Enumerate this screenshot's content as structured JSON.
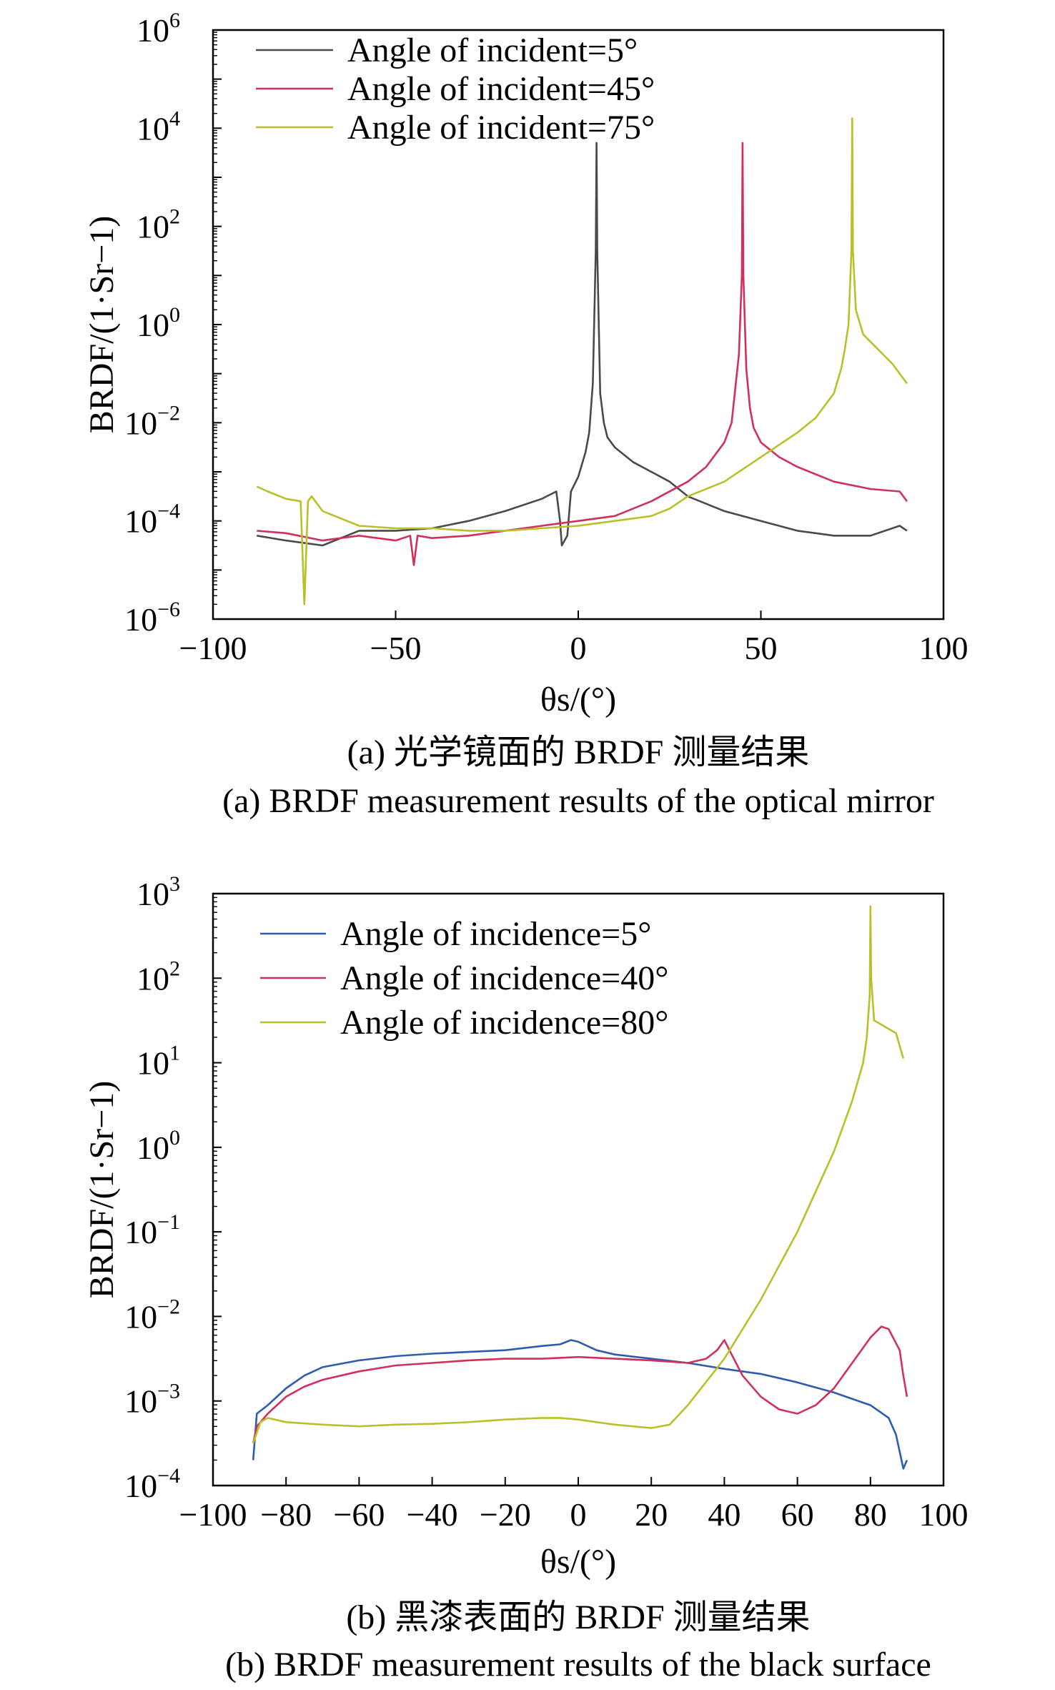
{
  "colors": {
    "black": "#4a4a4a",
    "red": "#d0305a",
    "yellow": "#b9c02a",
    "blue": "#2f5cb0",
    "orange": "#f08a2a"
  },
  "chart_data": [
    {
      "type": "line",
      "xlabel": "θs/(°)",
      "ylabel": "BRDF/(1·Sr−1)",
      "xlim": [
        -100,
        100
      ],
      "ylim_log10": [
        -6,
        6
      ],
      "y_scale": "log",
      "x_ticks": [
        -100,
        -50,
        0,
        50,
        100
      ],
      "x_tick_labels": [
        "−100",
        "−50",
        "0",
        "50",
        "100"
      ],
      "y_tick_exps": [
        6,
        4,
        2,
        0,
        -2,
        -4,
        -6
      ],
      "y_tick_exp_labels": [
        "6",
        "4",
        "2",
        "0",
        "−2",
        "−4",
        "−6"
      ],
      "legend_position": "top-left",
      "caption_cn": "(a) 光学镜面的 BRDF 测量结果",
      "caption_en": "(a) BRDF measurement results of the optical mirror",
      "series": [
        {
          "name": "Angle of incident=5°",
          "color": "#4a4a4a",
          "x": [
            -88,
            -80,
            -70,
            -60,
            -50,
            -40,
            -30,
            -20,
            -10,
            -6,
            -5,
            -4.5,
            -3,
            -2,
            0,
            2,
            3,
            4,
            4.8,
            5,
            5.2,
            6,
            7,
            8,
            10,
            15,
            20,
            25,
            30,
            40,
            50,
            60,
            70,
            80,
            88,
            90
          ],
          "y": [
            -4.3,
            -4.4,
            -4.5,
            -4.2,
            -4.2,
            -4.15,
            -4.0,
            -3.8,
            -3.55,
            -3.4,
            -4.0,
            -4.5,
            -4.3,
            -3.4,
            -3.1,
            -2.6,
            -2.2,
            -1.2,
            1.5,
            3.7,
            1.5,
            -1.4,
            -2.0,
            -2.3,
            -2.5,
            -2.8,
            -3.0,
            -3.2,
            -3.5,
            -3.8,
            -4.0,
            -4.2,
            -4.3,
            -4.3,
            -4.1,
            -4.2
          ]
        },
        {
          "name": "Angle of incident=45°",
          "color": "#d0305a",
          "x": [
            -88,
            -80,
            -70,
            -60,
            -50,
            -46,
            -45,
            -44,
            -40,
            -30,
            -20,
            -10,
            0,
            10,
            20,
            30,
            35,
            40,
            42,
            43,
            44,
            44.8,
            45,
            45.2,
            46,
            47,
            48,
            50,
            55,
            60,
            70,
            80,
            88,
            90
          ],
          "y": [
            -4.2,
            -4.25,
            -4.4,
            -4.3,
            -4.4,
            -4.3,
            -4.9,
            -4.3,
            -4.35,
            -4.3,
            -4.2,
            -4.1,
            -4.0,
            -3.9,
            -3.6,
            -3.2,
            -2.9,
            -2.4,
            -2.0,
            -1.3,
            -0.6,
            1.0,
            3.7,
            1.0,
            -0.9,
            -1.7,
            -2.1,
            -2.4,
            -2.7,
            -2.9,
            -3.2,
            -3.35,
            -3.4,
            -3.6
          ]
        },
        {
          "name": "Angle of incident=75°",
          "color": "#b9c02a",
          "x": [
            -88,
            -85,
            -80,
            -76,
            -75,
            -74,
            -73,
            -70,
            -60,
            -50,
            -40,
            -30,
            -20,
            -10,
            0,
            10,
            20,
            25,
            30,
            40,
            50,
            60,
            65,
            70,
            72,
            73,
            74,
            74.8,
            75,
            75.2,
            76,
            78,
            82,
            86,
            90
          ],
          "y": [
            -3.3,
            -3.4,
            -3.55,
            -3.6,
            -5.7,
            -3.6,
            -3.5,
            -3.8,
            -4.1,
            -4.15,
            -4.15,
            -4.2,
            -4.2,
            -4.15,
            -4.1,
            -4.0,
            -3.9,
            -3.75,
            -3.5,
            -3.2,
            -2.7,
            -2.2,
            -1.9,
            -1.4,
            -0.9,
            -0.5,
            0.0,
            1.5,
            4.2,
            1.5,
            0.3,
            -0.2,
            -0.5,
            -0.8,
            -1.2
          ]
        }
      ]
    },
    {
      "type": "line",
      "xlabel": "θs/(°)",
      "ylabel": "BRDF/(1·Sr−1)",
      "xlim": [
        -100,
        100
      ],
      "ylim_log10": [
        -4,
        3
      ],
      "y_scale": "log",
      "x_ticks": [
        -100,
        -80,
        -60,
        -40,
        -20,
        0,
        20,
        40,
        60,
        80,
        100
      ],
      "x_tick_labels": [
        "−100",
        "−80",
        "−60",
        "−40",
        "−20",
        "0",
        "20",
        "40",
        "60",
        "80",
        "100"
      ],
      "y_tick_exps": [
        3,
        2,
        1,
        0,
        -1,
        -2,
        -3,
        -4
      ],
      "y_tick_exp_labels": [
        "3",
        "2",
        "1",
        "0",
        "−1",
        "−2",
        "−3",
        "−4"
      ],
      "legend_position": "top-left",
      "caption_cn": "(b) 黑漆表面的 BRDF 测量结果",
      "caption_en": "(b) BRDF measurement results of the black surface",
      "series": [
        {
          "name": "Angle of incidence=5°",
          "color": "#2f5cb0",
          "x": [
            -89,
            -88,
            -85,
            -80,
            -75,
            -70,
            -60,
            -50,
            -40,
            -30,
            -20,
            -10,
            -5,
            -2,
            0,
            5,
            10,
            20,
            30,
            40,
            50,
            60,
            70,
            80,
            85,
            87,
            88,
            89,
            90
          ],
          "y": [
            -3.7,
            -3.15,
            -3.05,
            -2.85,
            -2.7,
            -2.6,
            -2.52,
            -2.47,
            -2.44,
            -2.42,
            -2.4,
            -2.35,
            -2.33,
            -2.28,
            -2.3,
            -2.4,
            -2.45,
            -2.5,
            -2.55,
            -2.62,
            -2.68,
            -2.78,
            -2.9,
            -3.05,
            -3.2,
            -3.4,
            -3.6,
            -3.8,
            -3.7
          ]
        },
        {
          "name": "Angle of incidence=40°",
          "color": "#d0305a",
          "x": [
            -89,
            -88,
            -85,
            -80,
            -75,
            -70,
            -60,
            -50,
            -40,
            -30,
            -20,
            -10,
            0,
            10,
            20,
            30,
            35,
            38,
            40,
            42,
            45,
            50,
            55,
            60,
            65,
            70,
            75,
            80,
            83,
            85,
            88,
            89,
            90
          ],
          "y": [
            -3.5,
            -3.3,
            -3.15,
            -2.95,
            -2.83,
            -2.75,
            -2.65,
            -2.58,
            -2.55,
            -2.52,
            -2.5,
            -2.5,
            -2.48,
            -2.5,
            -2.52,
            -2.55,
            -2.5,
            -2.4,
            -2.28,
            -2.45,
            -2.7,
            -2.95,
            -3.1,
            -3.15,
            -3.05,
            -2.85,
            -2.55,
            -2.25,
            -2.12,
            -2.15,
            -2.4,
            -2.7,
            -2.95
          ]
        },
        {
          "name": "Angle of incidence=80°",
          "color": "#b9c02a",
          "x": [
            -89,
            -87,
            -85,
            -80,
            -70,
            -60,
            -50,
            -40,
            -30,
            -20,
            -10,
            -5,
            0,
            5,
            10,
            20,
            25,
            30,
            40,
            50,
            60,
            70,
            75,
            78,
            79,
            79.8,
            80,
            80.2,
            81,
            83,
            85,
            87,
            89
          ],
          "y": [
            -3.5,
            -3.25,
            -3.2,
            -3.25,
            -3.28,
            -3.3,
            -3.28,
            -3.27,
            -3.25,
            -3.22,
            -3.2,
            -3.2,
            -3.22,
            -3.25,
            -3.28,
            -3.32,
            -3.28,
            -3.05,
            -2.5,
            -1.8,
            -1.0,
            -0.05,
            0.55,
            1.0,
            1.3,
            1.8,
            2.85,
            2.0,
            1.5,
            1.45,
            1.4,
            1.35,
            1.05
          ]
        }
      ]
    }
  ]
}
